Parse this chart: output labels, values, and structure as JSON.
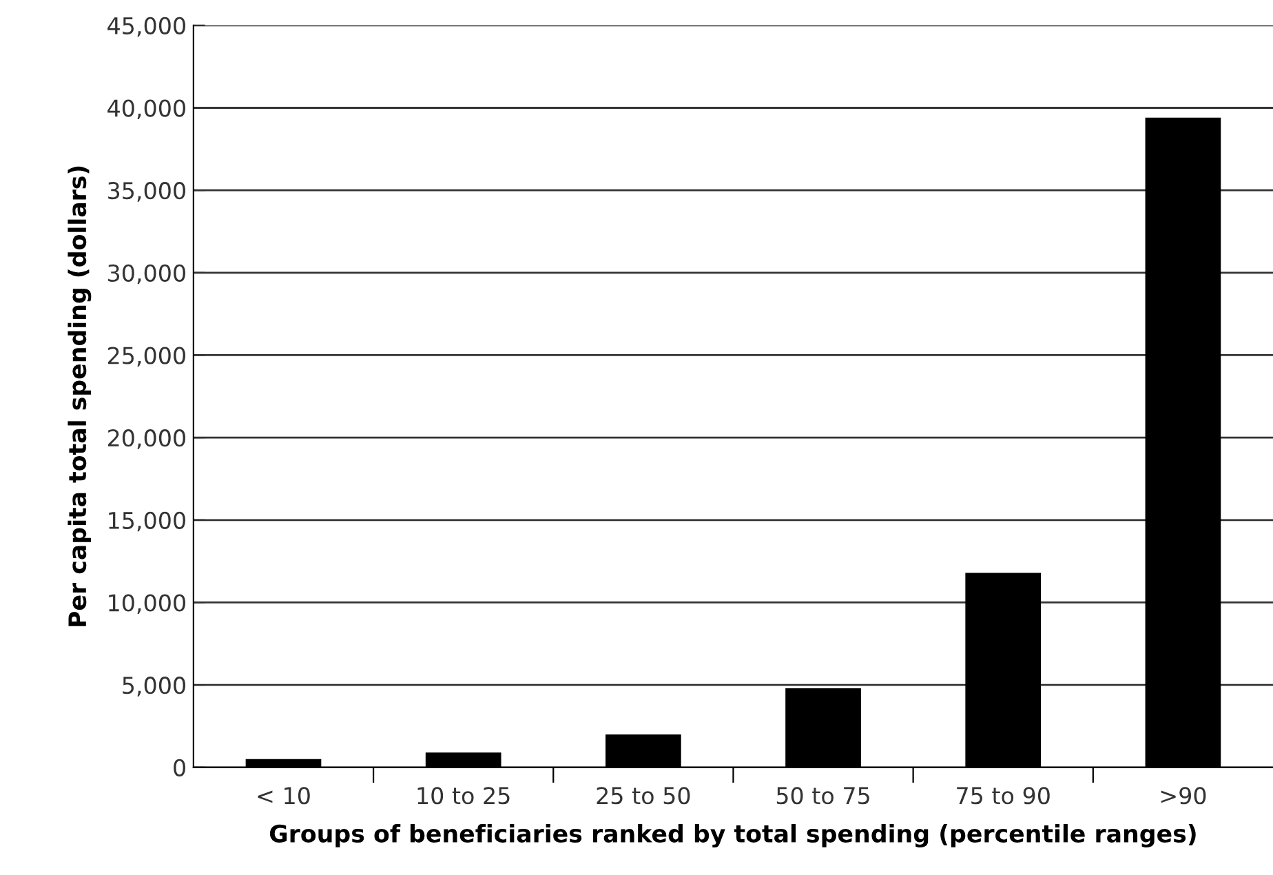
{
  "chart_data": {
    "type": "bar",
    "xlabel": "Groups of beneficiaries ranked by total spending (percentile ranges)",
    "ylabel": "Per capita total spending (dollars)",
    "categories": [
      "< 10",
      "10 to 25",
      "25 to 50",
      "50 to 75",
      "75 to 90",
      ">90"
    ],
    "values": [
      500,
      900,
      2000,
      4800,
      11800,
      39400
    ],
    "color": "#000000",
    "ylim": [
      0,
      45000
    ],
    "yticks": [
      {
        "value": 0,
        "label": "0"
      },
      {
        "value": 5000,
        "label": "5,000"
      },
      {
        "value": 10000,
        "label": "10,000"
      },
      {
        "value": 15000,
        "label": "15,000"
      },
      {
        "value": 20000,
        "label": "20,000"
      },
      {
        "value": 25000,
        "label": "25,000"
      },
      {
        "value": 30000,
        "label": "30,000"
      },
      {
        "value": 35000,
        "label": "35,000"
      },
      {
        "value": 40000,
        "label": "40,000"
      },
      {
        "value": 45000,
        "label": "45,000"
      }
    ],
    "grid": "y"
  }
}
